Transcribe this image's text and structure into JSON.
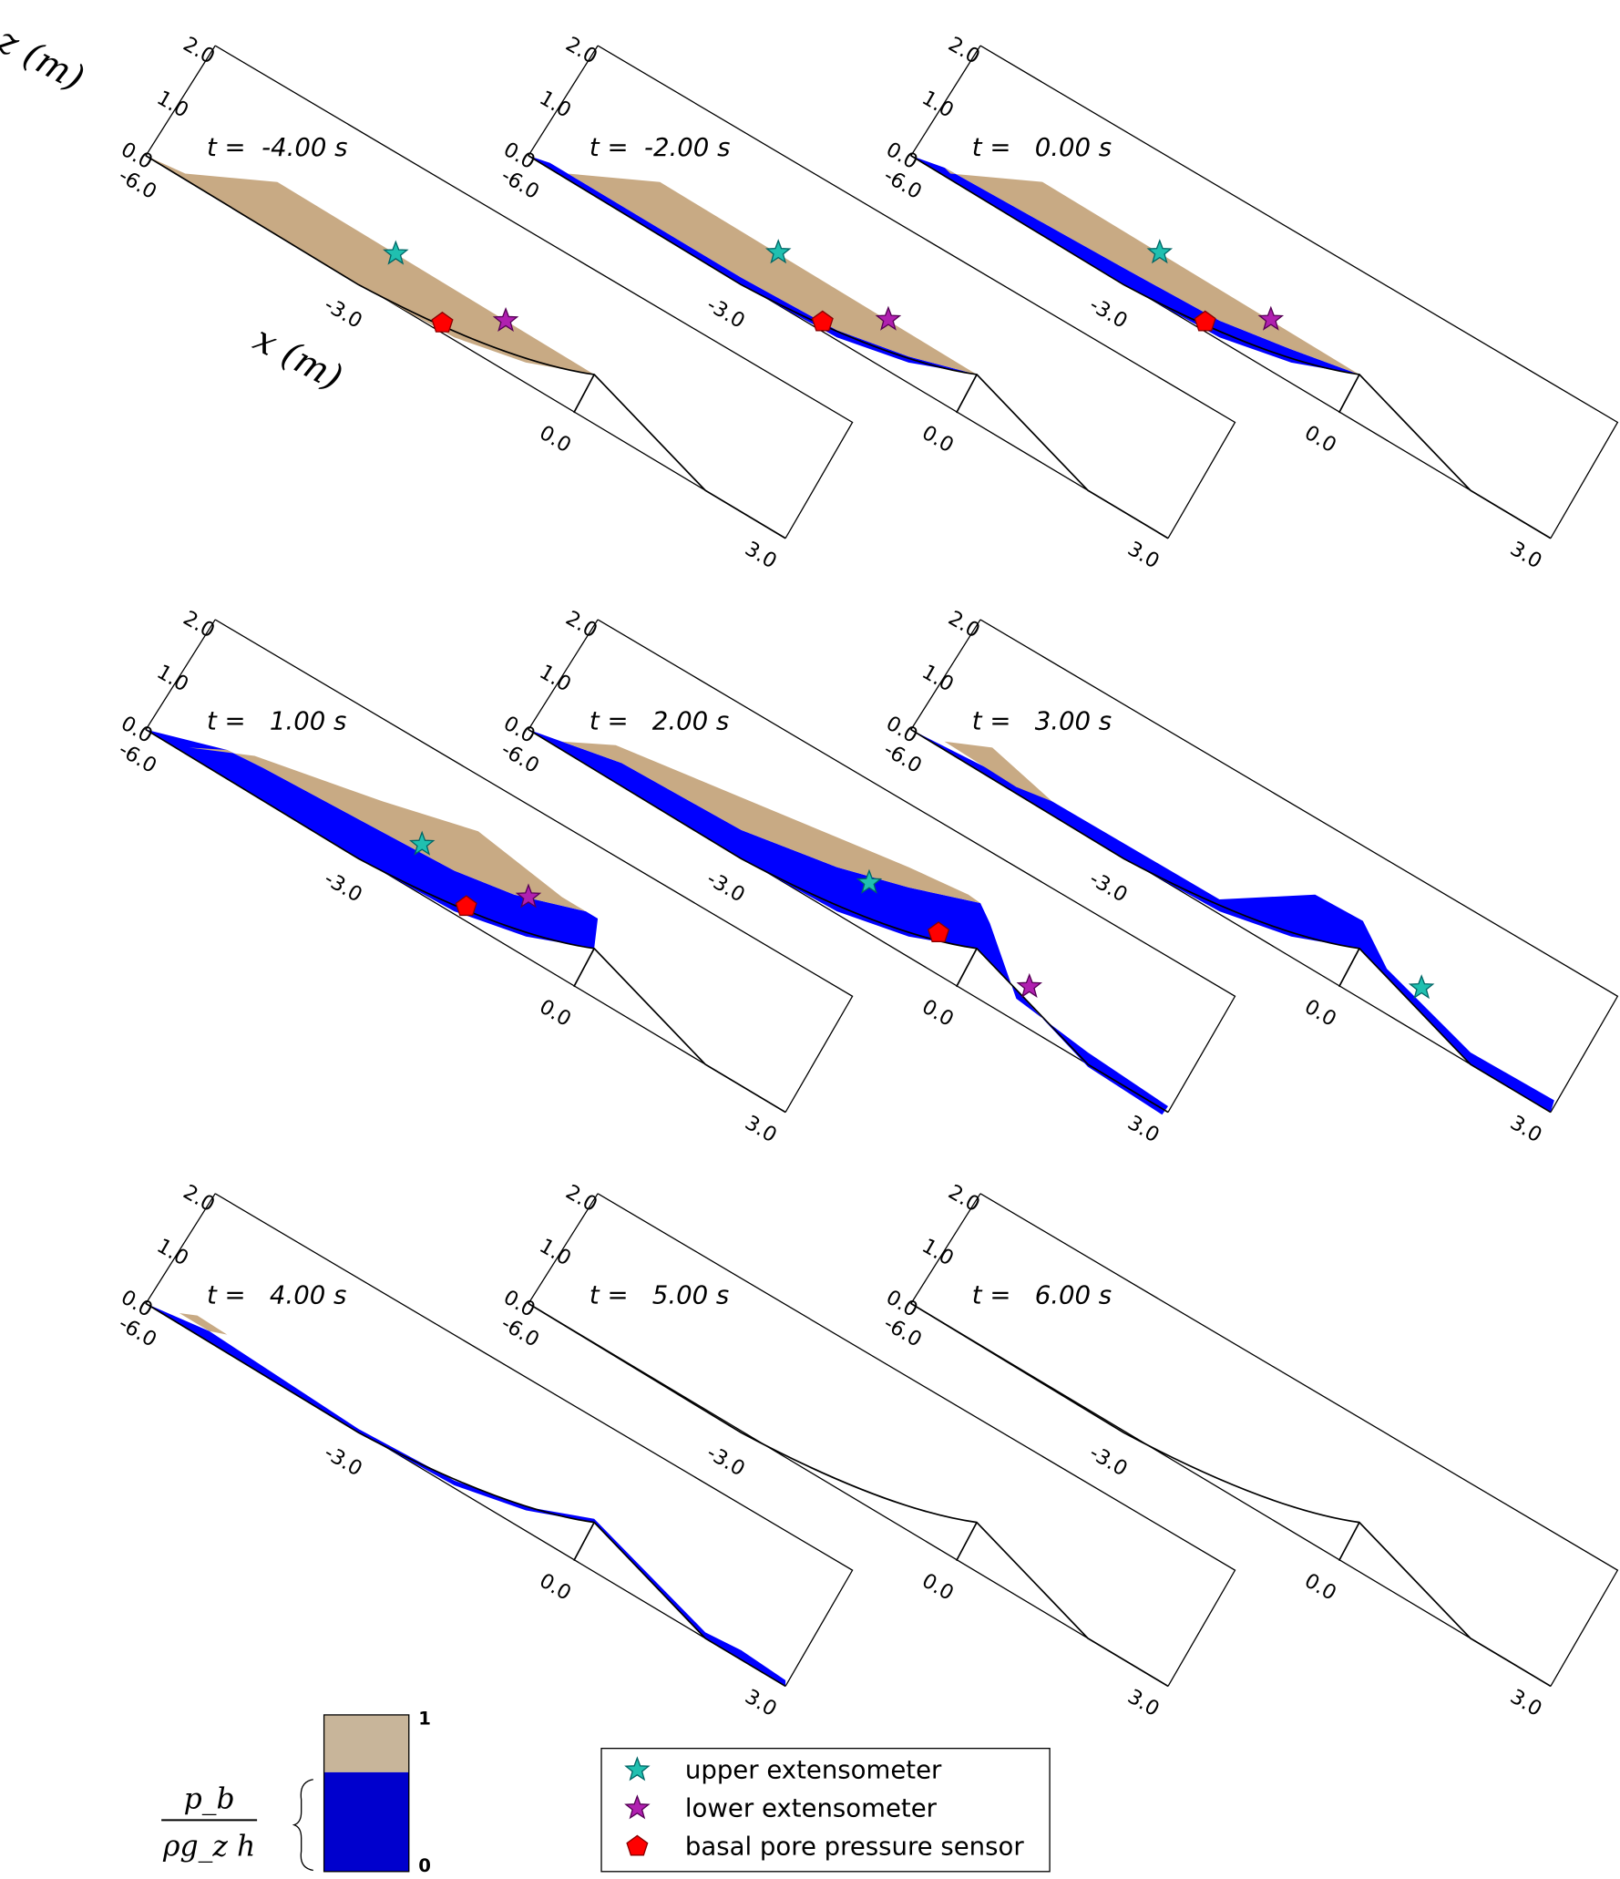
{
  "panels": [
    {
      "title": "t =  -4.00 s"
    },
    {
      "title": "t =  -2.00 s"
    },
    {
      "title": "t =   0.00 s"
    },
    {
      "title": "t =   1.00 s"
    },
    {
      "title": "t =   2.00 s"
    },
    {
      "title": "t =   3.00 s"
    },
    {
      "title": "t =   4.00 s"
    },
    {
      "title": "t =   5.00 s"
    },
    {
      "title": "t =   6.00 s"
    }
  ],
  "axes": {
    "z_label": "z (m)",
    "x_label": "x (m)",
    "z_ticks": [
      "2.0",
      "1.0",
      "0.0"
    ],
    "x_ticks": [
      "-6.0",
      "-3.0",
      "0.0",
      "3.0"
    ]
  },
  "legend": [
    {
      "label": "upper extensometer"
    },
    {
      "label": "lower extensometer"
    },
    {
      "label": "basal pore pressure sensor"
    }
  ],
  "colorbar": {
    "label_top": "1",
    "label_bottom": "0",
    "numerator": "p_b",
    "denominator": "ρg_z h"
  }
}
